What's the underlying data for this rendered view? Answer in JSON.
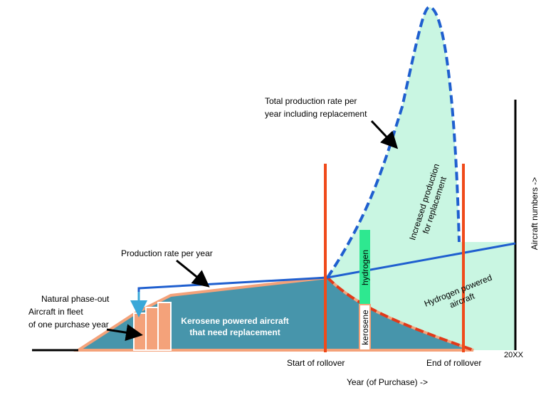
{
  "labels": {
    "total_production": [
      "Total production rate per",
      "year including replacement"
    ],
    "increased_production": [
      "Increased production",
      "for replacement"
    ],
    "production_rate": "Production rate per year",
    "natural_phase_out": "Natural phase-out",
    "aircraft_in_fleet": [
      "Aircraft in fleet",
      "of one purchase year"
    ],
    "kerosene_area": [
      "Kerosene powered aircraft",
      "that need replacement"
    ],
    "hydrogen_bar": "hydrogen",
    "kerosene_bar": "kerosene",
    "hydrogen_area": [
      "Hydrogen powered",
      "aircraft"
    ],
    "start_rollover": "Start of rollover",
    "end_rollover": "End of rollover",
    "year_marker": "20XX",
    "x_axis": "Year (of Purchase) ->",
    "y_axis": "Aircraft numbers ->"
  }
}
